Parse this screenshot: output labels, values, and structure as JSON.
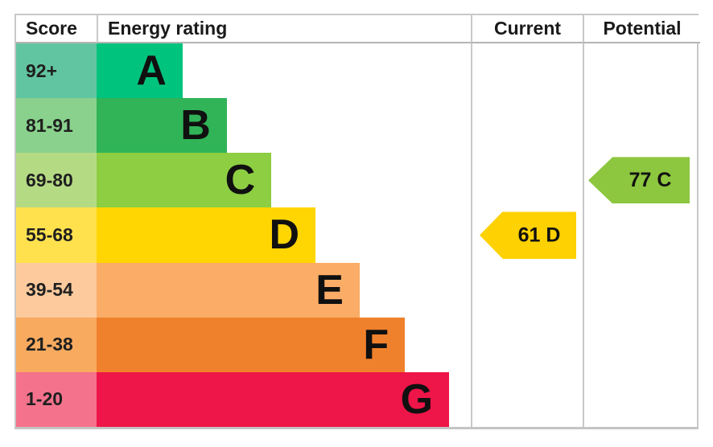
{
  "header": {
    "score": "Score",
    "energy_rating": "Energy rating",
    "current": "Current",
    "potential": "Potential"
  },
  "chart_data": {
    "type": "bar",
    "title": "EPC energy efficiency rating chart",
    "categories": [
      "A",
      "B",
      "C",
      "D",
      "E",
      "F",
      "G"
    ],
    "bands": [
      {
        "letter": "A",
        "score_range": "92+",
        "bar_color": "#00c47d",
        "tint_color": "#62c5a1",
        "width_pct": 23.0
      },
      {
        "letter": "B",
        "score_range": "81-91",
        "bar_color": "#30b457",
        "tint_color": "#89d18c",
        "width_pct": 34.8
      },
      {
        "letter": "C",
        "score_range": "69-80",
        "bar_color": "#8dce42",
        "tint_color": "#b5da84",
        "width_pct": 46.7
      },
      {
        "letter": "D",
        "score_range": "55-68",
        "bar_color": "#ffd502",
        "tint_color": "#ffe14e",
        "width_pct": 58.5
      },
      {
        "letter": "E",
        "score_range": "39-54",
        "bar_color": "#fbac66",
        "tint_color": "#fcca9d",
        "width_pct": 70.3
      },
      {
        "letter": "F",
        "score_range": "21-38",
        "bar_color": "#f0812c",
        "tint_color": "#f8aa5f",
        "width_pct": 82.4
      },
      {
        "letter": "G",
        "score_range": "1-20",
        "bar_color": "#ee1548",
        "tint_color": "#f5728c",
        "width_pct": 94.2
      }
    ],
    "current": {
      "value": 61,
      "band": "D",
      "label": "61 D",
      "color": "#fed102",
      "band_index": 3
    },
    "potential": {
      "value": 77,
      "band": "C",
      "label": "77 C",
      "color": "#8dc63f",
      "band_index": 2
    }
  }
}
